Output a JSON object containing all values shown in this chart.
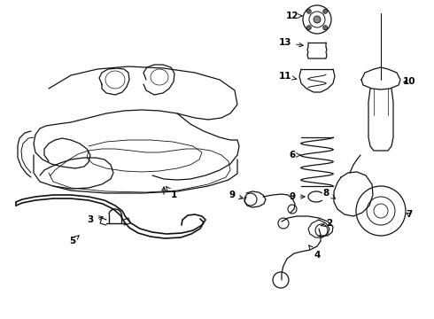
{
  "background_color": "#ffffff",
  "line_color": "#111111",
  "label_color": "#000000",
  "fig_width": 4.9,
  "fig_height": 3.6,
  "dpi": 100
}
